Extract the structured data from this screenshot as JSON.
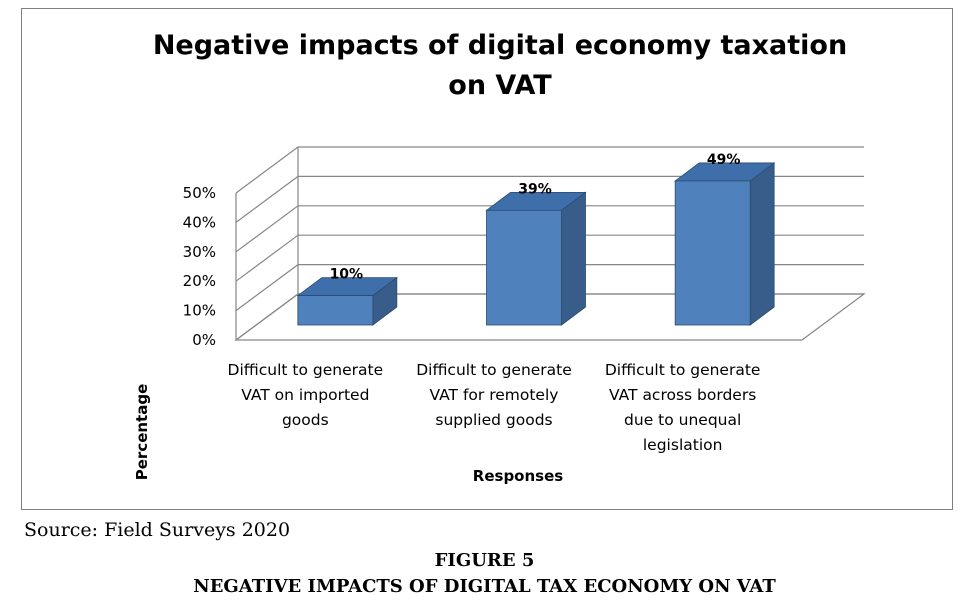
{
  "chart_data": {
    "type": "bar",
    "title": "Negative impacts of digital economy taxation on VAT",
    "title_lines": [
      "Negative impacts of digital economy taxation",
      "on VAT"
    ],
    "categories": [
      [
        "Difficult to generate",
        "VAT on imported",
        "goods"
      ],
      [
        "Difficult to generate",
        "VAT for remotely",
        "supplied goods"
      ],
      [
        "Difficult to generate",
        "VAT across borders",
        "due to unequal",
        "legislation"
      ]
    ],
    "values": [
      10,
      39,
      49
    ],
    "data_labels": [
      "10%",
      "39%",
      "49%"
    ],
    "y_ticks": [
      "0%",
      "10%",
      "20%",
      "30%",
      "40%",
      "50%"
    ],
    "ylim": [
      0,
      50
    ],
    "xlabel": "Responses",
    "ylabel": "Percentage",
    "grid": true,
    "three_d": true,
    "bar_color": "#4f81bd",
    "bar_side_color": "#385d8a",
    "bar_top_color": "#3f6faa"
  },
  "source": "Source: Field Surveys 2020",
  "figure_label": "FIGURE 5",
  "figure_caption": "NEGATIVE IMPACTS OF DIGITAL TAX ECONOMY ON VAT"
}
